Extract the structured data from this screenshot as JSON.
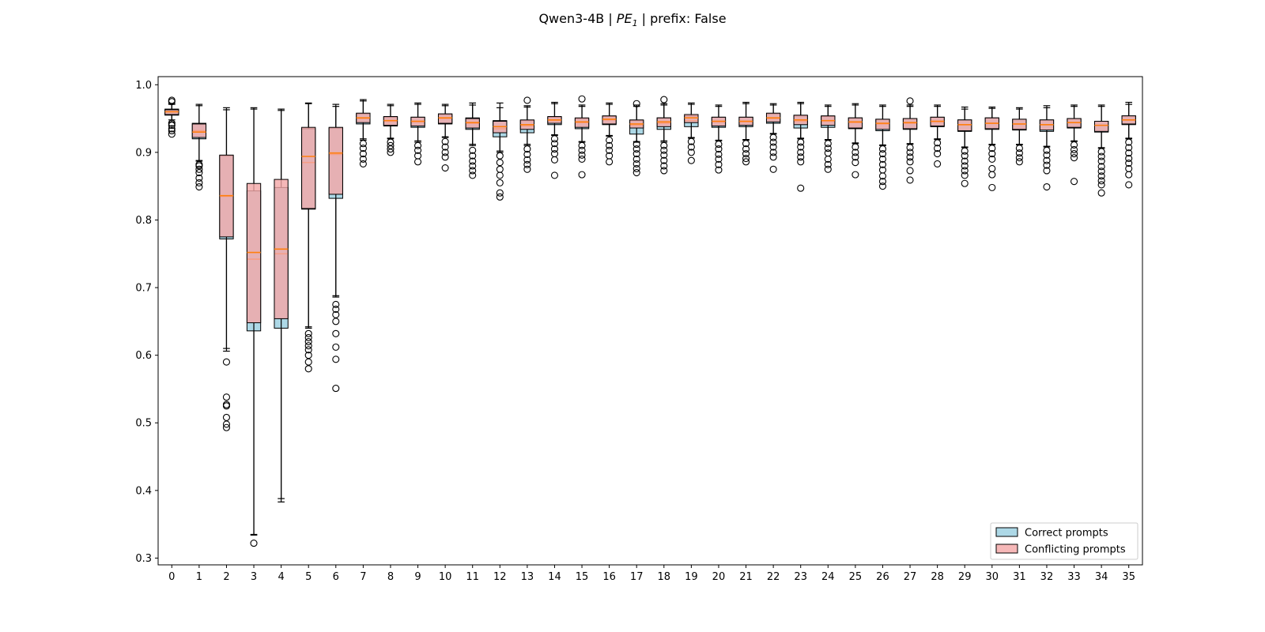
{
  "chart_data": {
    "type": "box",
    "title": {
      "model": "Qwen3-4B",
      "pe_base": "PE",
      "pe_sub": "1",
      "prefix": "prefix: False"
    },
    "xlabel": "",
    "ylabel": "",
    "ylim": [
      0.29,
      1.012
    ],
    "yticks": [
      0.3,
      0.4,
      0.5,
      0.6,
      0.7,
      0.8,
      0.9,
      1.0
    ],
    "categories": [
      "0",
      "1",
      "2",
      "3",
      "4",
      "5",
      "6",
      "7",
      "8",
      "9",
      "10",
      "11",
      "12",
      "13",
      "14",
      "15",
      "16",
      "17",
      "18",
      "19",
      "20",
      "21",
      "22",
      "23",
      "24",
      "25",
      "26",
      "27",
      "28",
      "29",
      "30",
      "31",
      "32",
      "33",
      "34",
      "35"
    ],
    "legend": {
      "placement": "lower right",
      "entries": [
        "Correct prompts",
        "Conflicting prompts"
      ]
    },
    "colors": {
      "correct_fill": "#add8e6",
      "conflicting_fill": "#f4a6a6",
      "median": "#ff7f0e",
      "edge": "#000000"
    },
    "series": [
      {
        "name": "Correct prompts",
        "boxes": [
          {
            "q1": 0.955,
            "med": 0.96,
            "q3": 0.964,
            "wlo": 0.945,
            "whi": 0.972,
            "fl": [
              0.94,
              0.935,
              0.932,
              0.927,
              0.975,
              0.977
            ]
          },
          {
            "q1": 0.92,
            "med": 0.932,
            "q3": 0.943,
            "wlo": 0.887,
            "whi": 0.971,
            "fl": [
              0.882,
              0.875,
              0.87,
              0.862,
              0.855,
              0.849
            ]
          },
          {
            "q1": 0.772,
            "med": 0.835,
            "q3": 0.895,
            "wlo": 0.606,
            "whi": 0.966,
            "fl": [
              0.59,
              0.538,
              0.527,
              0.525,
              0.508,
              0.498,
              0.493
            ]
          },
          {
            "q1": 0.636,
            "med": 0.742,
            "q3": 0.843,
            "wlo": 0.334,
            "whi": 0.966,
            "fl": [
              0.322
            ]
          },
          {
            "q1": 0.64,
            "med": 0.75,
            "q3": 0.848,
            "wlo": 0.383,
            "whi": 0.964,
            "fl": []
          },
          {
            "q1": 0.816,
            "med": 0.885,
            "q3": 0.935,
            "wlo": 0.642,
            "whi": 0.973,
            "fl": [
              0.632,
              0.626,
              0.62,
              0.614,
              0.608,
              0.6,
              0.59,
              0.58
            ]
          },
          {
            "q1": 0.832,
            "med": 0.897,
            "q3": 0.936,
            "wlo": 0.688,
            "whi": 0.971,
            "fl": [
              0.675,
              0.668,
              0.66,
              0.65,
              0.632,
              0.612,
              0.594,
              0.551
            ]
          },
          {
            "q1": 0.942,
            "med": 0.95,
            "q3": 0.957,
            "wlo": 0.918,
            "whi": 0.978,
            "fl": [
              0.913,
              0.906,
              0.898,
              0.89,
              0.883
            ]
          },
          {
            "q1": 0.939,
            "med": 0.946,
            "q3": 0.952,
            "wlo": 0.92,
            "whi": 0.971,
            "fl": [
              0.915,
              0.91,
              0.905,
              0.9
            ]
          },
          {
            "q1": 0.937,
            "med": 0.945,
            "q3": 0.952,
            "wlo": 0.915,
            "whi": 0.973,
            "fl": [
              0.91,
              0.903,
              0.895,
              0.886
            ]
          },
          {
            "q1": 0.942,
            "med": 0.95,
            "q3": 0.956,
            "wlo": 0.922,
            "whi": 0.971,
            "fl": [
              0.916,
              0.908,
              0.9,
              0.893,
              0.877
            ]
          },
          {
            "q1": 0.934,
            "med": 0.943,
            "q3": 0.951,
            "wlo": 0.91,
            "whi": 0.973,
            "fl": [
              0.903,
              0.895,
              0.887,
              0.88,
              0.873,
              0.866
            ]
          },
          {
            "q1": 0.923,
            "med": 0.935,
            "q3": 0.947,
            "wlo": 0.9,
            "whi": 0.973,
            "fl": [
              0.895,
              0.885,
              0.875,
              0.866,
              0.855,
              0.84,
              0.834
            ]
          },
          {
            "q1": 0.929,
            "med": 0.939,
            "q3": 0.947,
            "wlo": 0.91,
            "whi": 0.969,
            "fl": [
              0.905,
              0.897,
              0.889,
              0.882,
              0.875,
              0.977
            ]
          },
          {
            "q1": 0.941,
            "med": 0.947,
            "q3": 0.952,
            "wlo": 0.925,
            "whi": 0.974,
            "fl": [
              0.92,
              0.913,
              0.905,
              0.898,
              0.889,
              0.866
            ]
          },
          {
            "q1": 0.935,
            "med": 0.944,
            "q3": 0.95,
            "wlo": 0.915,
            "whi": 0.97,
            "fl": [
              0.91,
              0.903,
              0.896,
              0.89,
              0.867,
              0.979
            ]
          },
          {
            "q1": 0.941,
            "med": 0.948,
            "q3": 0.953,
            "wlo": 0.924,
            "whi": 0.973,
            "fl": [
              0.918,
              0.91,
              0.903,
              0.895,
              0.886
            ]
          },
          {
            "q1": 0.927,
            "med": 0.94,
            "q3": 0.947,
            "wlo": 0.915,
            "whi": 0.97,
            "fl": [
              0.912,
              0.905,
              0.898,
              0.89,
              0.883,
              0.876,
              0.87,
              0.972
            ]
          },
          {
            "q1": 0.934,
            "med": 0.943,
            "q3": 0.951,
            "wlo": 0.915,
            "whi": 0.972,
            "fl": [
              0.91,
              0.903,
              0.896,
              0.888,
              0.88,
              0.873,
              0.978
            ]
          },
          {
            "q1": 0.938,
            "med": 0.947,
            "q3": 0.954,
            "wlo": 0.921,
            "whi": 0.973,
            "fl": [
              0.916,
              0.908,
              0.9,
              0.888
            ]
          },
          {
            "q1": 0.937,
            "med": 0.945,
            "q3": 0.952,
            "wlo": 0.917,
            "whi": 0.97,
            "fl": [
              0.912,
              0.905,
              0.897,
              0.89,
              0.882,
              0.874
            ]
          },
          {
            "q1": 0.938,
            "med": 0.945,
            "q3": 0.952,
            "wlo": 0.918,
            "whi": 0.974,
            "fl": [
              0.913,
              0.905,
              0.898,
              0.891,
              0.886
            ]
          },
          {
            "q1": 0.943,
            "med": 0.95,
            "q3": 0.957,
            "wlo": 0.927,
            "whi": 0.972,
            "fl": [
              0.922,
              0.915,
              0.908,
              0.9,
              0.893,
              0.875
            ]
          },
          {
            "q1": 0.936,
            "med": 0.946,
            "q3": 0.954,
            "wlo": 0.92,
            "whi": 0.974,
            "fl": [
              0.915,
              0.908,
              0.9,
              0.893,
              0.886,
              0.847
            ]
          },
          {
            "q1": 0.937,
            "med": 0.946,
            "q3": 0.953,
            "wlo": 0.918,
            "whi": 0.97,
            "fl": [
              0.913,
              0.906,
              0.899,
              0.89,
              0.882,
              0.875
            ]
          },
          {
            "q1": 0.935,
            "med": 0.944,
            "q3": 0.951,
            "wlo": 0.913,
            "whi": 0.972,
            "fl": [
              0.908,
              0.9,
              0.893,
              0.885,
              0.867
            ]
          },
          {
            "q1": 0.932,
            "med": 0.942,
            "q3": 0.949,
            "wlo": 0.91,
            "whi": 0.97,
            "fl": [
              0.905,
              0.898,
              0.89,
              0.882,
              0.874,
              0.865,
              0.857,
              0.85
            ]
          },
          {
            "q1": 0.934,
            "med": 0.943,
            "q3": 0.95,
            "wlo": 0.912,
            "whi": 0.97,
            "fl": [
              0.907,
              0.9,
              0.893,
              0.886,
              0.873,
              0.859,
              0.976
            ]
          },
          {
            "q1": 0.938,
            "med": 0.945,
            "q3": 0.952,
            "wlo": 0.919,
            "whi": 0.97,
            "fl": [
              0.914,
              0.906,
              0.898,
              0.883
            ]
          },
          {
            "q1": 0.931,
            "med": 0.941,
            "q3": 0.948,
            "wlo": 0.907,
            "whi": 0.967,
            "fl": [
              0.902,
              0.895,
              0.887,
              0.88,
              0.873,
              0.866,
              0.854
            ]
          },
          {
            "q1": 0.934,
            "med": 0.943,
            "q3": 0.951,
            "wlo": 0.911,
            "whi": 0.967,
            "fl": [
              0.906,
              0.898,
              0.89,
              0.876,
              0.867,
              0.848
            ]
          },
          {
            "q1": 0.933,
            "med": 0.942,
            "q3": 0.949,
            "wlo": 0.911,
            "whi": 0.966,
            "fl": [
              0.906,
              0.899,
              0.892,
              0.886
            ]
          },
          {
            "q1": 0.931,
            "med": 0.941,
            "q3": 0.948,
            "wlo": 0.908,
            "whi": 0.969,
            "fl": [
              0.903,
              0.896,
              0.888,
              0.881,
              0.873,
              0.849
            ]
          },
          {
            "q1": 0.936,
            "med": 0.944,
            "q3": 0.95,
            "wlo": 0.916,
            "whi": 0.97,
            "fl": [
              0.911,
              0.904,
              0.898,
              0.892,
              0.857
            ]
          },
          {
            "q1": 0.93,
            "med": 0.94,
            "q3": 0.946,
            "wlo": 0.906,
            "whi": 0.97,
            "fl": [
              0.901,
              0.894,
              0.887,
              0.879,
              0.872,
              0.865,
              0.858,
              0.852,
              0.84
            ]
          },
          {
            "q1": 0.941,
            "med": 0.948,
            "q3": 0.954,
            "wlo": 0.92,
            "whi": 0.974,
            "fl": [
              0.915,
              0.907,
              0.899,
              0.891,
              0.884,
              0.876,
              0.867,
              0.852
            ]
          }
        ]
      },
      {
        "name": "Conflicting prompts",
        "boxes": [
          {
            "q1": 0.956,
            "med": 0.96,
            "q3": 0.963,
            "wlo": 0.948,
            "whi": 0.971,
            "fl": [
              0.943
            ]
          },
          {
            "q1": 0.922,
            "med": 0.93,
            "q3": 0.942,
            "wlo": 0.888,
            "whi": 0.969,
            "fl": [
              0.88
            ]
          },
          {
            "q1": 0.775,
            "med": 0.836,
            "q3": 0.896,
            "wlo": 0.61,
            "whi": 0.963,
            "fl": []
          },
          {
            "q1": 0.648,
            "med": 0.752,
            "q3": 0.854,
            "wlo": 0.335,
            "whi": 0.964,
            "fl": []
          },
          {
            "q1": 0.654,
            "med": 0.757,
            "q3": 0.86,
            "wlo": 0.388,
            "whi": 0.962,
            "fl": []
          },
          {
            "q1": 0.817,
            "med": 0.894,
            "q3": 0.937,
            "wlo": 0.64,
            "whi": 0.972,
            "fl": []
          },
          {
            "q1": 0.838,
            "med": 0.899,
            "q3": 0.937,
            "wlo": 0.686,
            "whi": 0.968,
            "fl": []
          },
          {
            "q1": 0.944,
            "med": 0.951,
            "q3": 0.958,
            "wlo": 0.92,
            "whi": 0.976,
            "fl": []
          },
          {
            "q1": 0.94,
            "med": 0.947,
            "q3": 0.953,
            "wlo": 0.921,
            "whi": 0.969,
            "fl": []
          },
          {
            "q1": 0.939,
            "med": 0.946,
            "q3": 0.952,
            "wlo": 0.917,
            "whi": 0.971,
            "fl": []
          },
          {
            "q1": 0.943,
            "med": 0.951,
            "q3": 0.957,
            "wlo": 0.923,
            "whi": 0.969,
            "fl": []
          },
          {
            "q1": 0.936,
            "med": 0.944,
            "q3": 0.95,
            "wlo": 0.912,
            "whi": 0.97,
            "fl": []
          },
          {
            "q1": 0.929,
            "med": 0.938,
            "q3": 0.946,
            "wlo": 0.902,
            "whi": 0.966,
            "fl": []
          },
          {
            "q1": 0.934,
            "med": 0.941,
            "q3": 0.948,
            "wlo": 0.912,
            "whi": 0.967,
            "fl": []
          },
          {
            "q1": 0.943,
            "med": 0.948,
            "q3": 0.953,
            "wlo": 0.926,
            "whi": 0.972,
            "fl": []
          },
          {
            "q1": 0.937,
            "med": 0.945,
            "q3": 0.951,
            "wlo": 0.916,
            "whi": 0.968,
            "fl": []
          },
          {
            "q1": 0.942,
            "med": 0.949,
            "q3": 0.954,
            "wlo": 0.925,
            "whi": 0.971,
            "fl": []
          },
          {
            "q1": 0.936,
            "med": 0.942,
            "q3": 0.948,
            "wlo": 0.916,
            "whi": 0.968,
            "fl": []
          },
          {
            "q1": 0.938,
            "med": 0.945,
            "q3": 0.951,
            "wlo": 0.917,
            "whi": 0.97,
            "fl": []
          },
          {
            "q1": 0.944,
            "med": 0.951,
            "q3": 0.956,
            "wlo": 0.922,
            "whi": 0.971,
            "fl": []
          },
          {
            "q1": 0.939,
            "med": 0.946,
            "q3": 0.952,
            "wlo": 0.918,
            "whi": 0.968,
            "fl": []
          },
          {
            "q1": 0.94,
            "med": 0.946,
            "q3": 0.952,
            "wlo": 0.919,
            "whi": 0.972,
            "fl": []
          },
          {
            "q1": 0.945,
            "med": 0.951,
            "q3": 0.958,
            "wlo": 0.928,
            "whi": 0.97,
            "fl": []
          },
          {
            "q1": 0.941,
            "med": 0.948,
            "q3": 0.955,
            "wlo": 0.921,
            "whi": 0.972,
            "fl": []
          },
          {
            "q1": 0.94,
            "med": 0.947,
            "q3": 0.954,
            "wlo": 0.919,
            "whi": 0.968,
            "fl": []
          },
          {
            "q1": 0.936,
            "med": 0.945,
            "q3": 0.951,
            "wlo": 0.914,
            "whi": 0.97,
            "fl": []
          },
          {
            "q1": 0.934,
            "med": 0.943,
            "q3": 0.949,
            "wlo": 0.911,
            "whi": 0.968,
            "fl": []
          },
          {
            "q1": 0.935,
            "med": 0.944,
            "q3": 0.95,
            "wlo": 0.913,
            "whi": 0.968,
            "fl": []
          },
          {
            "q1": 0.939,
            "med": 0.946,
            "q3": 0.952,
            "wlo": 0.92,
            "whi": 0.968,
            "fl": []
          },
          {
            "q1": 0.932,
            "med": 0.941,
            "q3": 0.948,
            "wlo": 0.908,
            "whi": 0.964,
            "fl": []
          },
          {
            "q1": 0.935,
            "med": 0.943,
            "q3": 0.951,
            "wlo": 0.912,
            "whi": 0.965,
            "fl": []
          },
          {
            "q1": 0.934,
            "med": 0.942,
            "q3": 0.949,
            "wlo": 0.912,
            "whi": 0.964,
            "fl": []
          },
          {
            "q1": 0.933,
            "med": 0.941,
            "q3": 0.948,
            "wlo": 0.909,
            "whi": 0.966,
            "fl": []
          },
          {
            "q1": 0.937,
            "med": 0.944,
            "q3": 0.95,
            "wlo": 0.917,
            "whi": 0.968,
            "fl": []
          },
          {
            "q1": 0.931,
            "med": 0.94,
            "q3": 0.946,
            "wlo": 0.907,
            "whi": 0.968,
            "fl": []
          },
          {
            "q1": 0.942,
            "med": 0.948,
            "q3": 0.954,
            "wlo": 0.921,
            "whi": 0.971,
            "fl": []
          }
        ]
      }
    ]
  }
}
